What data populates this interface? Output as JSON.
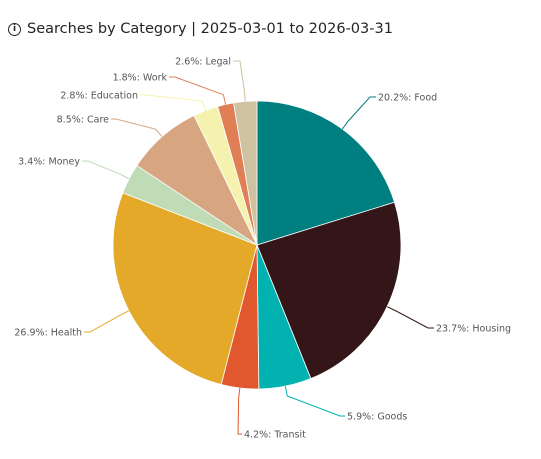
{
  "header": {
    "info_icon": "info-icon",
    "title": "Searches by Category | 2025-03-01 to 2026-03-31"
  },
  "chart_data": {
    "type": "pie",
    "title": "Searches by Category | 2025-03-01 to 2026-03-31",
    "start_angle": "12 o'clock, clockwise",
    "slices": [
      {
        "name": "Food",
        "value": 20.2,
        "color": "#007F80",
        "label": "20.2%: Food"
      },
      {
        "name": "Housing",
        "value": 23.7,
        "color": "#341619",
        "label": "23.7%: Housing"
      },
      {
        "name": "Goods",
        "value": 5.9,
        "color": "#01B2B0",
        "label": "5.9%: Goods"
      },
      {
        "name": "Transit",
        "value": 4.2,
        "color": "#E1582E",
        "label": "4.2%: Transit"
      },
      {
        "name": "Health",
        "value": 26.9,
        "color": "#E4A929",
        "label": "26.9%: Health"
      },
      {
        "name": "Money",
        "value": 3.4,
        "color": "#BFDCB6",
        "label": "3.4%: Money"
      },
      {
        "name": "Care",
        "value": 8.5,
        "color": "#D7A580",
        "label": "8.5%: Care"
      },
      {
        "name": "Education",
        "value": 2.8,
        "color": "#F5F2B0",
        "label": "2.8%: Education"
      },
      {
        "name": "Work",
        "value": 1.8,
        "color": "#E07F55",
        "label": "1.8%: Work"
      },
      {
        "name": "Legal",
        "value": 2.6,
        "color": "#CFC2A0",
        "label": "2.6%: Legal"
      }
    ]
  }
}
